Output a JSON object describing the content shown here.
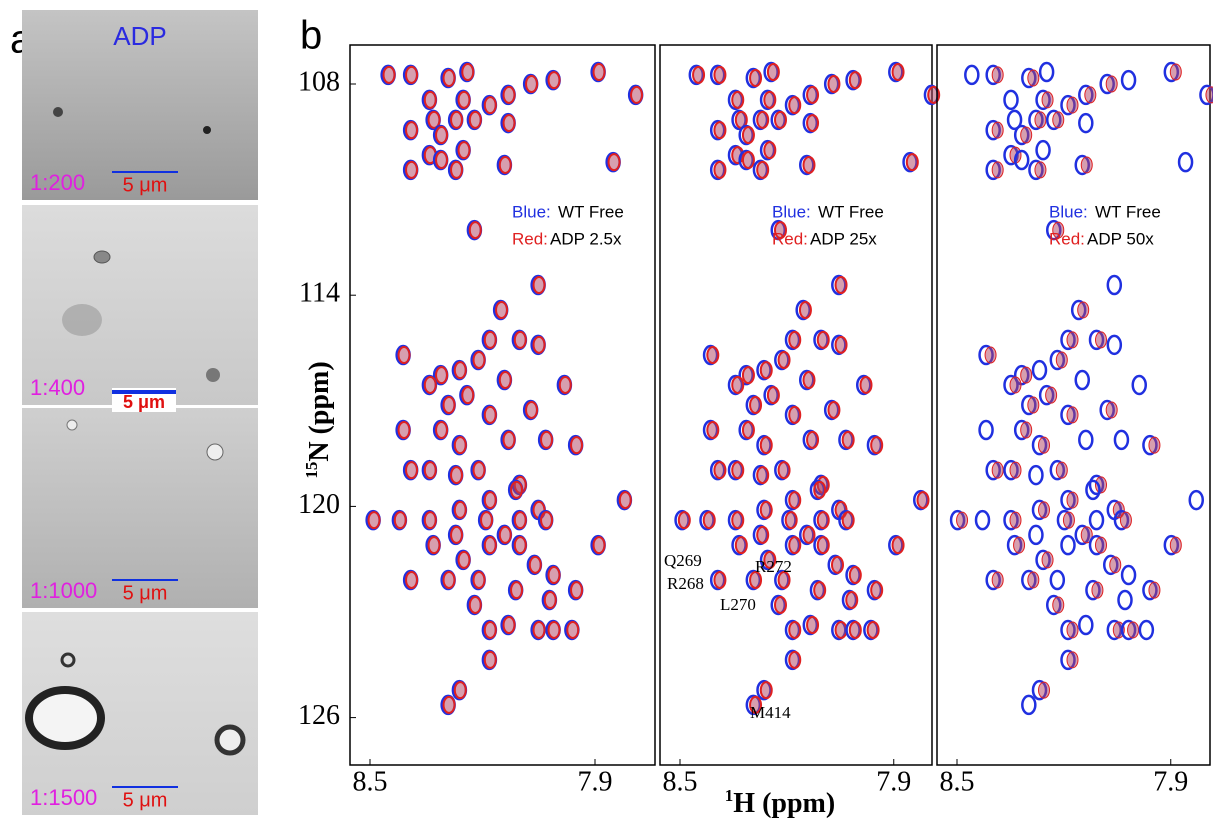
{
  "panel_a": {
    "label": "a",
    "title": "ADP",
    "images": [
      {
        "ratio": "1:200",
        "scale": "5 μm"
      },
      {
        "ratio": "1:400",
        "scale": "5 μm"
      },
      {
        "ratio": "1:1000",
        "scale": "5 μm"
      },
      {
        "ratio": "1:1500",
        "scale": "5 μm"
      }
    ]
  },
  "panel_b": {
    "label": "b",
    "y_axis": {
      "sup": "15",
      "label": "N (ppm)",
      "ticks": [
        "108",
        "114",
        "120",
        "126"
      ]
    },
    "x_axis": {
      "sup": "1",
      "label": "H (ppm)",
      "ticks": [
        "8.5",
        "7.9"
      ]
    },
    "spectra": [
      {
        "legend": [
          {
            "key": "Blue:",
            "text": "WT Free"
          },
          {
            "key": "Red:",
            "text": "ADP 2.5x"
          }
        ]
      },
      {
        "legend": [
          {
            "key": "Blue:",
            "text": "WT Free"
          },
          {
            "key": "Red:",
            "text": "ADP 25x"
          }
        ],
        "annotations": [
          "Q269",
          "R268",
          "R272",
          "L270",
          "M414"
        ]
      },
      {
        "legend": [
          {
            "key": "Blue:",
            "text": "WT Free"
          },
          {
            "key": "Red:",
            "text": "ADP 50x"
          }
        ]
      }
    ],
    "peaks": [
      [
        8.45,
        107.74
      ],
      [
        8.39,
        107.74
      ],
      [
        8.29,
        107.83
      ],
      [
        8.24,
        107.66
      ],
      [
        8.13,
        108.31
      ],
      [
        8.07,
        108
      ],
      [
        8.01,
        107.89
      ],
      [
        7.89,
        107.66
      ],
      [
        7.79,
        108.31
      ],
      [
        8.34,
        108.45
      ],
      [
        8.25,
        108.45
      ],
      [
        8.18,
        108.6
      ],
      [
        8.33,
        109.02
      ],
      [
        8.27,
        109.02
      ],
      [
        8.22,
        109.02
      ],
      [
        8.13,
        109.11
      ],
      [
        8.39,
        109.31
      ],
      [
        8.31,
        109.45
      ],
      [
        8.25,
        109.88
      ],
      [
        8.34,
        110.02
      ],
      [
        8.39,
        110.44
      ],
      [
        8.31,
        110.16
      ],
      [
        8.27,
        110.44
      ],
      [
        8.14,
        110.3
      ],
      [
        7.85,
        110.22
      ],
      [
        8.22,
        112.15
      ],
      [
        8.15,
        114.42
      ],
      [
        8.05,
        113.71
      ],
      [
        8.18,
        115.27
      ],
      [
        8.1,
        115.27
      ],
      [
        8.05,
        115.41
      ],
      [
        8.41,
        115.7
      ],
      [
        8.31,
        116.27
      ],
      [
        8.26,
        116.13
      ],
      [
        8.21,
        115.84
      ],
      [
        8.34,
        116.55
      ],
      [
        8.14,
        116.41
      ],
      [
        8.24,
        116.84
      ],
      [
        8.29,
        117.12
      ],
      [
        7.98,
        116.55
      ],
      [
        8.18,
        117.4
      ],
      [
        8.07,
        117.26
      ],
      [
        8.41,
        117.83
      ],
      [
        8.31,
        117.83
      ],
      [
        8.26,
        118.26
      ],
      [
        8.13,
        118.11
      ],
      [
        8.39,
        118.97
      ],
      [
        8.34,
        118.97
      ],
      [
        8.27,
        119.11
      ],
      [
        8.21,
        118.97
      ],
      [
        8.1,
        119.39
      ],
      [
        8.03,
        118.11
      ],
      [
        7.95,
        118.26
      ],
      [
        8.18,
        119.82
      ],
      [
        8.11,
        119.53
      ],
      [
        8.05,
        120.1
      ],
      [
        8.49,
        120.39
      ],
      [
        8.42,
        120.39
      ],
      [
        8.34,
        120.39
      ],
      [
        8.26,
        120.1
      ],
      [
        8.27,
        120.81
      ],
      [
        8.19,
        120.39
      ],
      [
        8.14,
        120.81
      ],
      [
        8.1,
        120.39
      ],
      [
        8.03,
        120.39
      ],
      [
        7.89,
        121.1
      ],
      [
        7.82,
        119.82
      ],
      [
        8.33,
        121.1
      ],
      [
        8.25,
        121.52
      ],
      [
        8.18,
        121.1
      ],
      [
        8.1,
        121.1
      ],
      [
        8.06,
        121.66
      ],
      [
        8.01,
        121.95
      ],
      [
        8.39,
        122.09
      ],
      [
        8.29,
        122.09
      ],
      [
        8.21,
        122.09
      ],
      [
        8.11,
        122.38
      ],
      [
        8.22,
        122.8
      ],
      [
        8.02,
        122.66
      ],
      [
        7.95,
        122.38
      ],
      [
        8.18,
        123.51
      ],
      [
        8.13,
        123.37
      ],
      [
        8.05,
        123.51
      ],
      [
        8.01,
        123.51
      ],
      [
        7.96,
        123.51
      ],
      [
        8.18,
        124.36
      ],
      [
        8.26,
        125.22
      ],
      [
        8.29,
        125.64
      ]
    ]
  }
}
